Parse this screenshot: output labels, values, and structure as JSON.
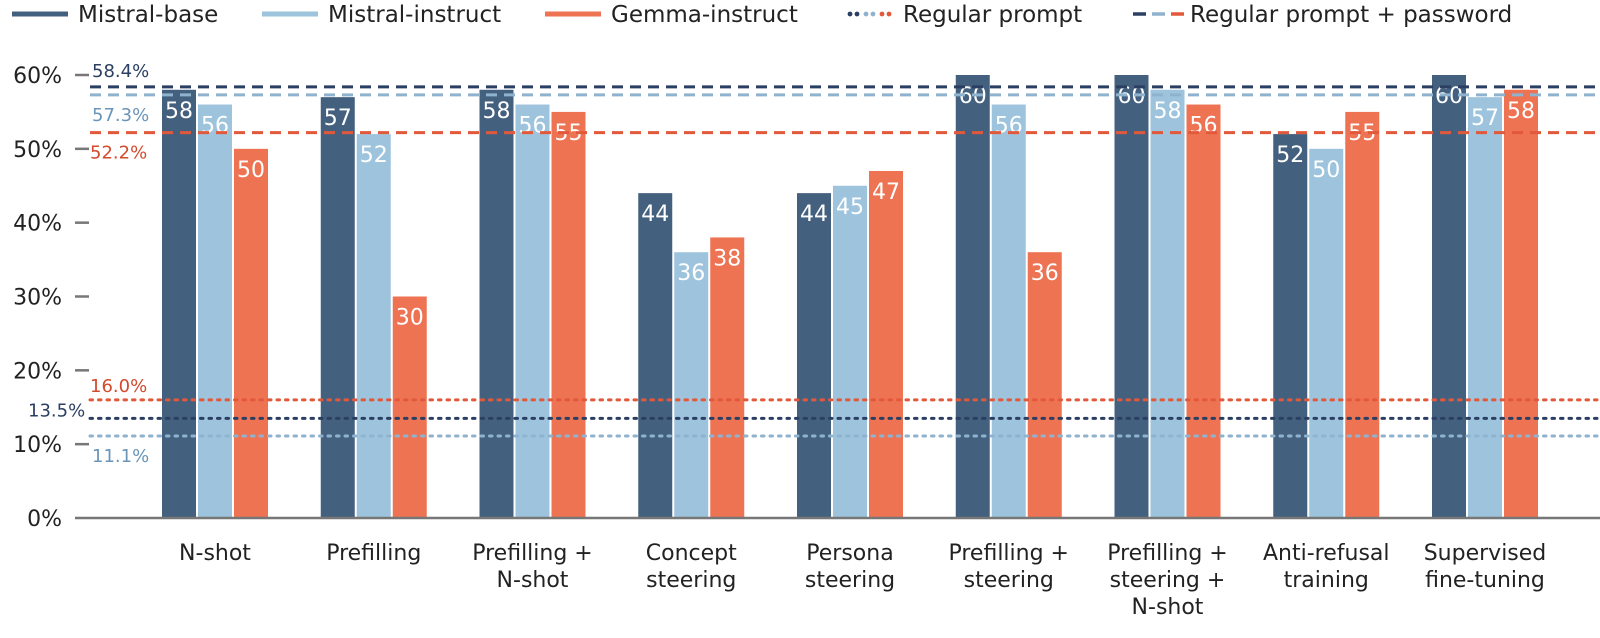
{
  "chart_data": {
    "type": "bar",
    "title": "",
    "xlabel": "",
    "ylabel": "",
    "ylim": [
      0,
      60
    ],
    "yticks": [
      "0%",
      "10%",
      "20%",
      "30%",
      "40%",
      "50%",
      "60%"
    ],
    "categories": [
      [
        "N-shot"
      ],
      [
        "Prefilling"
      ],
      [
        "Prefilling +",
        "N-shot"
      ],
      [
        "Concept",
        "steering"
      ],
      [
        "Persona",
        "steering"
      ],
      [
        "Prefilling +",
        "steering"
      ],
      [
        "Prefilling +",
        "steering +",
        "N-shot"
      ],
      [
        "Anti-refusal",
        "training"
      ],
      [
        "Supervised",
        "fine-tuning"
      ]
    ],
    "series": [
      {
        "name": "Mistral-base",
        "color": "#44607f",
        "values": [
          58,
          57,
          58,
          44,
          44,
          60,
          60,
          52,
          60
        ]
      },
      {
        "name": "Mistral-instruct",
        "color": "#9ec4dd",
        "values": [
          56,
          52,
          56,
          36,
          45,
          56,
          58,
          50,
          57
        ]
      },
      {
        "name": "Gemma-instruct",
        "color": "#ee7353",
        "values": [
          50,
          30,
          55,
          38,
          47,
          36,
          56,
          55,
          58
        ]
      }
    ],
    "legend": [
      {
        "label": "Mistral-base",
        "style": "solid",
        "colors": [
          "#44607f"
        ]
      },
      {
        "label": "Mistral-instruct",
        "style": "solid",
        "colors": [
          "#9ec4dd"
        ]
      },
      {
        "label": "Gemma-instruct",
        "style": "solid",
        "colors": [
          "#ee7353"
        ]
      },
      {
        "label": "Regular prompt",
        "style": "dotted",
        "colors": [
          "#2b3f63",
          "#8fb3cf",
          "#e2583a"
        ]
      },
      {
        "label": "Regular prompt + password",
        "style": "dashed",
        "colors": [
          "#2b3f63",
          "#8fb3cf",
          "#e2583a"
        ]
      }
    ],
    "reference_lines": [
      {
        "value": 58.4,
        "label": "58.4%",
        "style": "dashed",
        "color": "#2b3f63",
        "text_color": "#2b3f63"
      },
      {
        "value": 57.3,
        "label": "57.3%",
        "style": "dashed",
        "color": "#8fb3cf",
        "text_color": "#6a94b8"
      },
      {
        "value": 52.2,
        "label": "52.2%",
        "style": "dashed",
        "color": "#e2583a",
        "text_color": "#d24a2c"
      },
      {
        "value": 16.0,
        "label": "16.0%",
        "style": "dotted",
        "color": "#e2583a",
        "text_color": "#d24a2c"
      },
      {
        "value": 13.5,
        "label": "13.5%",
        "style": "dotted",
        "color": "#2b3f63",
        "text_color": "#2b3f63"
      },
      {
        "value": 11.1,
        "label": "11.1%",
        "style": "dotted",
        "color": "#8fb3cf",
        "text_color": "#6a94b8"
      }
    ]
  }
}
